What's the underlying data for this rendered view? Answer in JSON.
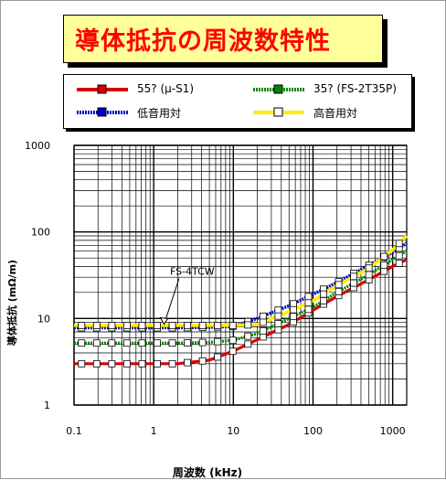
{
  "title": "導体抵抗の周波数特性",
  "legend": [
    {
      "label": "55? (μ-S1)",
      "color": "#dd0000",
      "style": "solid"
    },
    {
      "label": "35? (FS-2T35P)",
      "color": "#008800",
      "style": "dotted"
    },
    {
      "label": "低音用対",
      "color": "#0000cc",
      "style": "dotted"
    },
    {
      "label": "高音用対",
      "color": "#ffee00",
      "style": "solid"
    }
  ],
  "chart_data": {
    "type": "line",
    "title": "導体抵抗の周波数特性",
    "xlabel": "周波数 (kHz)",
    "ylabel": "導体抵抗 (mΩ/m)",
    "xscale": "log",
    "yscale": "log",
    "xlim": [
      0.1,
      1500
    ],
    "ylim": [
      1,
      1000
    ],
    "x_ticks": [
      "0.1",
      "1",
      "10",
      "100",
      "1000"
    ],
    "y_ticks": [
      "1",
      "10",
      "100",
      "1000"
    ],
    "grid": true,
    "annotations": [
      {
        "text": "FS-4TCW"
      }
    ],
    "series": [
      {
        "name": "55? (μ-S1)",
        "color": "#dd0000",
        "x": [
          0.1,
          0.2,
          0.5,
          1,
          2,
          5,
          10,
          20,
          50,
          100,
          200,
          500,
          1000,
          1500
        ],
        "y": [
          3,
          3,
          3,
          3,
          3,
          3.3,
          4.2,
          5.7,
          8.5,
          12.5,
          18,
          28,
          40,
          48
        ]
      },
      {
        "name": "35? (FS-2T35P)",
        "color": "#008800",
        "x": [
          0.1,
          0.2,
          0.5,
          1,
          2,
          5,
          10,
          20,
          50,
          100,
          200,
          500,
          1000,
          1500
        ],
        "y": [
          5.2,
          5.2,
          5.2,
          5.2,
          5.2,
          5.3,
          5.6,
          6.7,
          10,
          13.5,
          20,
          32,
          48,
          60
        ]
      },
      {
        "name": "低音用対",
        "color": "#0000cc",
        "x": [
          0.1,
          0.2,
          0.5,
          1,
          2,
          5,
          10,
          20,
          50,
          100,
          200,
          500,
          1000,
          1500
        ],
        "y": [
          7.8,
          7.8,
          7.8,
          7.8,
          7.8,
          7.9,
          8.1,
          10,
          14,
          19,
          26,
          41,
          58,
          74
        ]
      },
      {
        "name": "高音用対",
        "color": "#ffee00",
        "x": [
          0.1,
          0.2,
          0.5,
          1,
          2,
          5,
          10,
          20,
          50,
          100,
          200,
          500,
          1000,
          1500
        ],
        "y": [
          8.3,
          8.3,
          8.3,
          8.3,
          8.3,
          8.3,
          8.3,
          8.5,
          12,
          16,
          24,
          38,
          62,
          90
        ]
      }
    ]
  }
}
